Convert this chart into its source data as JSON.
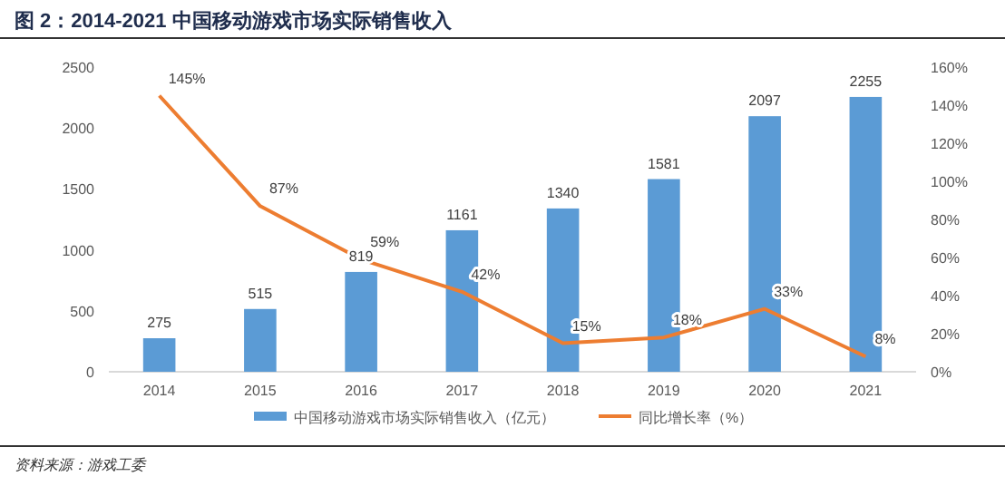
{
  "chart_data": {
    "type": "bar",
    "title": "图 2：2014-2021 中国移动游戏市场实际销售收入",
    "annotations": [
      "资料来源：游戏工委"
    ],
    "categories": [
      "2014",
      "2015",
      "2016",
      "2017",
      "2018",
      "2019",
      "2020",
      "2021"
    ],
    "series": [
      {
        "name": "中国移动游戏市场实际销售收入（亿元）",
        "color": "#5b9bd5",
        "values": [
          275,
          515,
          819,
          1161,
          1340,
          1581,
          2097,
          2255
        ],
        "value_labels": [
          "275",
          "515",
          "819",
          "1161",
          "1340",
          "1581",
          "2097",
          "2255"
        ]
      },
      {
        "name": "同比增长率（%）",
        "type": "line",
        "axis": "y2",
        "color": "#ed7d31",
        "values": [
          145,
          87,
          59,
          42,
          15,
          18,
          33,
          8
        ],
        "value_labels": [
          "145%",
          "87%",
          "59%",
          "42%",
          "15%",
          "18%",
          "33%",
          "8%"
        ]
      }
    ],
    "ylim": [
      0,
      2500
    ],
    "yticks": [
      0,
      500,
      1000,
      1500,
      2000,
      2500
    ],
    "y2lim": [
      0,
      160
    ],
    "y2ticks": [
      {
        "value": 0,
        "label": "0%"
      },
      {
        "value": 20,
        "label": "20%"
      },
      {
        "value": 40,
        "label": "40%"
      },
      {
        "value": 60,
        "label": "60%"
      },
      {
        "value": 80,
        "label": "80%"
      },
      {
        "value": 100,
        "label": "100%"
      },
      {
        "value": 120,
        "label": "120%"
      },
      {
        "value": 140,
        "label": "140%"
      },
      {
        "value": 160,
        "label": "160%"
      }
    ],
    "legend": "bottom",
    "grid": false,
    "marker": "none"
  }
}
